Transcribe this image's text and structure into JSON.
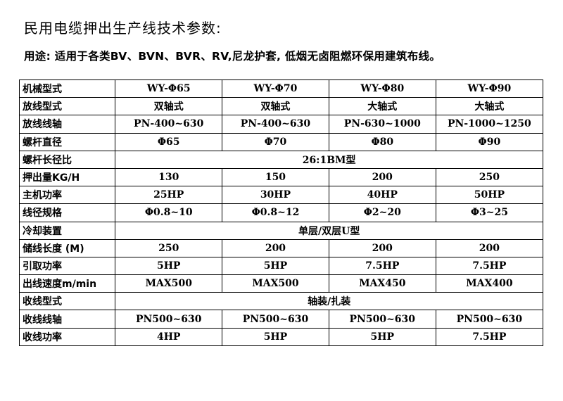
{
  "title": "民用电缆押出生产线技术参数:",
  "usage": "用途: 适用于各类BV、BVN、BVR、RV,尼龙护套, 低烟无卤阻燃环保用建筑布线。",
  "rows": [
    {
      "label": "机械型式",
      "values": [
        "WY-Φ65",
        "WY-Φ70",
        "WY-Φ80",
        "WY-Φ90"
      ]
    },
    {
      "label": "放线型式",
      "values": [
        "双轴式",
        "双轴式",
        "大轴式",
        "大轴式"
      ]
    },
    {
      "label": "放线线轴",
      "values": [
        "PN-400~630",
        "PN-400~630",
        "PN-630~1000",
        "PN-1000~1250"
      ]
    },
    {
      "label": "螺杆直径",
      "values": [
        "Φ65",
        "Φ70",
        "Φ80",
        "Φ90"
      ]
    },
    {
      "label": "螺杆长径比",
      "merged": "26:1BM型"
    },
    {
      "label": "押出量KG/H",
      "values": [
        "130",
        "150",
        "200",
        "250"
      ]
    },
    {
      "label": "主机功率",
      "values": [
        "25HP",
        "30HP",
        "40HP",
        "50HP"
      ]
    },
    {
      "label": "线径规格",
      "values": [
        "Φ0.8~10",
        "Φ0.8~12",
        "Φ2~20",
        "Φ3~25"
      ]
    },
    {
      "label": "冷却装置",
      "merged": "单层/双层U型"
    },
    {
      "label": "储线长度 (M)",
      "values": [
        "250",
        "200",
        "200",
        "200"
      ]
    },
    {
      "label": "引取功率",
      "values": [
        "5HP",
        "5HP",
        "7.5HP",
        "7.5HP"
      ]
    },
    {
      "label": "出线速度m/min",
      "values": [
        "MAX500",
        "MAX500",
        "MAX450",
        "MAX400"
      ]
    },
    {
      "label": "收线型式",
      "merged": "轴装/扎装"
    },
    {
      "label": "收线线轴",
      "values": [
        "PN500~630",
        "PN500~630",
        "PN500~630",
        "PN500~630"
      ]
    },
    {
      "label": "收线功率",
      "values": [
        "4HP",
        "5HP",
        "5HP",
        "7.5HP"
      ]
    }
  ]
}
